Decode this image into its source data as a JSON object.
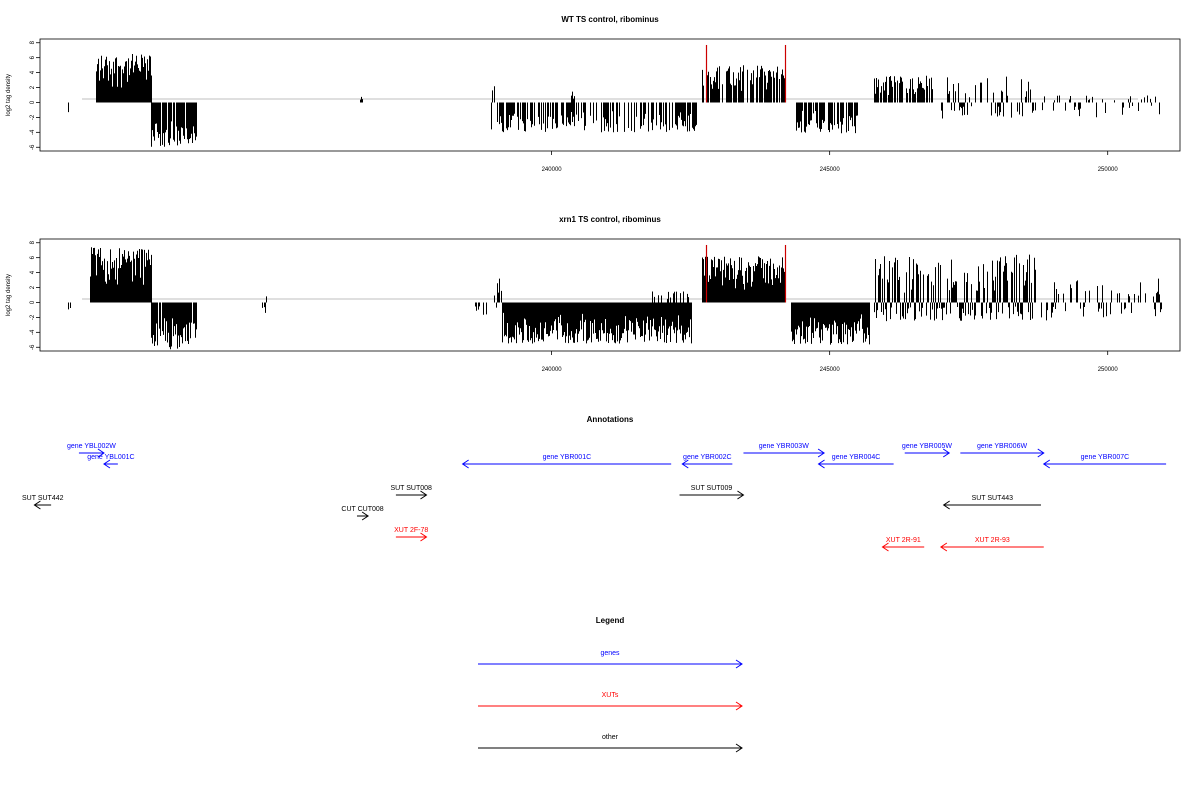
{
  "chart_data": [
    {
      "type": "bar",
      "title": "WT TS control, ribominus",
      "ylabel": "log2 tag density",
      "xlabel": "",
      "xlim": [
        230800,
        251300
      ],
      "ylim": [
        -6.5,
        8.5
      ],
      "x_ticks": [
        "240000",
        "245000",
        "250000"
      ],
      "x_tick_values": [
        240000,
        245000,
        250000
      ],
      "y_ticks": [
        "8",
        "6",
        "4",
        "2",
        "0",
        "-2",
        "-4",
        "-6"
      ],
      "y_tick_values": [
        8,
        6,
        4,
        2,
        0,
        -2,
        -4,
        -6
      ],
      "segments": [
        {
          "from": 231200,
          "to": 231300,
          "min": -1.5,
          "max": 0,
          "density": 0.3
        },
        {
          "from": 231800,
          "to": 232800,
          "min": 0,
          "max": 6.5,
          "density": 1.0
        },
        {
          "from": 232800,
          "to": 233600,
          "min": -6,
          "max": 0,
          "density": 0.9
        },
        {
          "from": 236500,
          "to": 236600,
          "min": 0,
          "max": 1,
          "density": 0.5
        },
        {
          "from": 238900,
          "to": 242600,
          "min": -4,
          "max": 0,
          "density": 0.6
        },
        {
          "from": 238900,
          "to": 239000,
          "min": 0,
          "max": 2.5,
          "density": 0.4
        },
        {
          "from": 240300,
          "to": 240400,
          "min": 0,
          "max": 2,
          "density": 0.3
        },
        {
          "from": 242500,
          "to": 242600,
          "min": 0,
          "max": 1,
          "density": 0.3
        },
        {
          "from": 242700,
          "to": 244200,
          "min": 0,
          "max": 5,
          "density": 0.7
        },
        {
          "from": 244400,
          "to": 245500,
          "min": -4.2,
          "max": 0,
          "density": 0.8
        },
        {
          "from": 245800,
          "to": 246900,
          "min": 0,
          "max": 3.6,
          "density": 0.7
        },
        {
          "from": 247000,
          "to": 248700,
          "min": -2.2,
          "max": 3.5,
          "density": 0.5
        },
        {
          "from": 248800,
          "to": 251000,
          "min": -2,
          "max": 1,
          "density": 0.25
        }
      ],
      "spikes": [
        {
          "x": 242780,
          "y": 7.7,
          "color": "#cc0000"
        },
        {
          "x": 244200,
          "y": 7.7,
          "color": "#cc0000"
        }
      ]
    },
    {
      "type": "bar",
      "title": "xrn1 TS control, ribominus",
      "ylabel": "log2 tag density",
      "xlabel": "",
      "xlim": [
        230800,
        251300
      ],
      "ylim": [
        -6.5,
        8.5
      ],
      "x_ticks": [
        "240000",
        "245000",
        "250000"
      ],
      "x_tick_values": [
        240000,
        245000,
        250000
      ],
      "y_ticks": [
        "8",
        "6",
        "4",
        "2",
        "0",
        "-2",
        "-4",
        "-6"
      ],
      "y_tick_values": [
        8,
        6,
        4,
        2,
        0,
        -2,
        -4,
        -6
      ],
      "segments": [
        {
          "from": 231300,
          "to": 231400,
          "min": -1,
          "max": 0,
          "density": 0.3
        },
        {
          "from": 231700,
          "to": 232800,
          "min": 0,
          "max": 7.5,
          "density": 1.0
        },
        {
          "from": 232800,
          "to": 233600,
          "min": -6.3,
          "max": 0,
          "density": 0.9
        },
        {
          "from": 234800,
          "to": 234900,
          "min": -2.7,
          "max": 1,
          "density": 0.5
        },
        {
          "from": 238600,
          "to": 239100,
          "min": -2,
          "max": 3.2,
          "density": 0.4
        },
        {
          "from": 239100,
          "to": 242500,
          "min": -5.5,
          "max": 0,
          "density": 1.0
        },
        {
          "from": 241800,
          "to": 242500,
          "min": 0,
          "max": 1.5,
          "density": 0.3
        },
        {
          "from": 242700,
          "to": 244200,
          "min": 0,
          "max": 6.2,
          "density": 1.0
        },
        {
          "from": 244300,
          "to": 245700,
          "min": -5.7,
          "max": 0,
          "density": 1.0
        },
        {
          "from": 245800,
          "to": 248700,
          "min": -2.5,
          "max": 6.5,
          "density": 0.9
        },
        {
          "from": 248800,
          "to": 251000,
          "min": -2.5,
          "max": 3.2,
          "density": 0.35
        }
      ],
      "spikes": [
        {
          "x": 242780,
          "y": 7.7,
          "color": "#cc0000"
        },
        {
          "x": 244200,
          "y": 7.7,
          "color": "#cc0000"
        }
      ]
    }
  ],
  "annotations": {
    "title": "Annotations",
    "features": [
      {
        "label": "gene YBL002W",
        "start": 231500,
        "end": 231950,
        "dir": "right",
        "row": 0,
        "color": "#0000ff"
      },
      {
        "label": "gene YBL001C",
        "start": 232200,
        "end": 231950,
        "dir": "left",
        "row": 1,
        "color": "#0000ff"
      },
      {
        "label": "gene YBR001C",
        "start": 242150,
        "end": 238400,
        "dir": "left",
        "row": 1,
        "color": "#0000ff"
      },
      {
        "label": "gene YBR002C",
        "start": 243250,
        "end": 242350,
        "dir": "left",
        "row": 1,
        "color": "#0000ff"
      },
      {
        "label": "gene YBR003W",
        "start": 243450,
        "end": 244900,
        "dir": "right",
        "row": 0,
        "color": "#0000ff"
      },
      {
        "label": "gene YBR004C",
        "start": 246150,
        "end": 244800,
        "dir": "left",
        "row": 1,
        "color": "#0000ff"
      },
      {
        "label": "gene YBR005W",
        "start": 246350,
        "end": 247150,
        "dir": "right",
        "row": 0,
        "color": "#0000ff"
      },
      {
        "label": "gene YBR006W",
        "start": 247350,
        "end": 248850,
        "dir": "right",
        "row": 0,
        "color": "#0000ff"
      },
      {
        "label": "gene YBR007C",
        "start": 251050,
        "end": 248850,
        "dir": "left",
        "row": 1,
        "color": "#0000ff"
      },
      {
        "label": "SUT SUT442",
        "start": 231000,
        "end": 230700,
        "dir": "left",
        "row": 3,
        "color": "#000000"
      },
      {
        "label": "SUT SUT008",
        "start": 237200,
        "end": 237750,
        "dir": "right",
        "row": 2,
        "color": "#000000"
      },
      {
        "label": "CUT CUT008",
        "start": 236500,
        "end": 236700,
        "dir": "right",
        "row": 4,
        "color": "#000000"
      },
      {
        "label": "SUT SUT009",
        "start": 242300,
        "end": 243450,
        "dir": "right",
        "row": 2,
        "color": "#000000"
      },
      {
        "label": "SUT SUT443",
        "start": 248800,
        "end": 247050,
        "dir": "left",
        "row": 3,
        "color": "#000000"
      },
      {
        "label": "XUT 2F-78",
        "start": 237200,
        "end": 237750,
        "dir": "right",
        "row": 5,
        "color": "#ff0000"
      },
      {
        "label": "XUT 2R-91",
        "start": 246700,
        "end": 245950,
        "dir": "left",
        "row": 6,
        "color": "#ff0000"
      },
      {
        "label": "XUT 2R-93",
        "start": 248850,
        "end": 247000,
        "dir": "left",
        "row": 6,
        "color": "#ff0000"
      }
    ]
  },
  "legend": {
    "title": "Legend",
    "items": [
      {
        "label": "genes",
        "color": "#0000ff"
      },
      {
        "label": "XUTs",
        "color": "#ff0000"
      },
      {
        "label": "other",
        "color": "#000000"
      }
    ]
  }
}
